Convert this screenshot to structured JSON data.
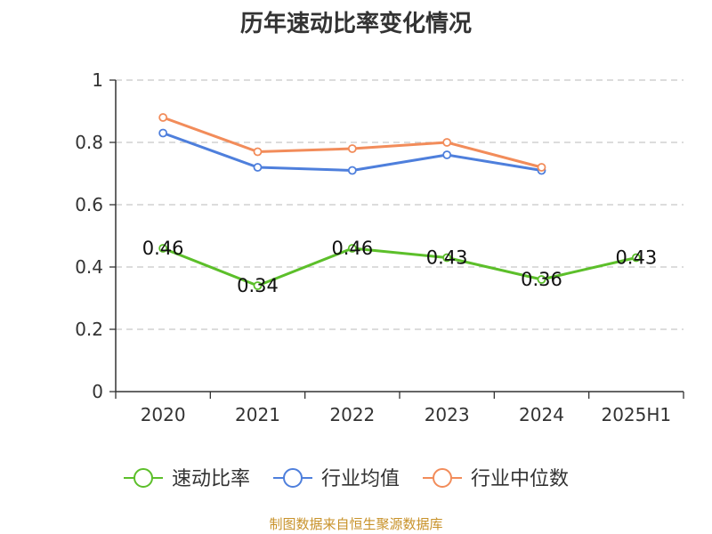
{
  "source": "制图数据来自恒生聚源数据库",
  "chart_data": {
    "type": "line",
    "title": "历年速动比率变化情况",
    "categories": [
      "2020",
      "2021",
      "2022",
      "2023",
      "2024",
      "2025H1"
    ],
    "y_ticks": [
      "0",
      "0.2",
      "0.4",
      "0.6",
      "0.8",
      "1"
    ],
    "ylim": [
      0,
      1
    ],
    "grid": "horizontal dashed",
    "legend_position": "bottom",
    "series": [
      {
        "name": "速动比率",
        "color": "#5cbf2a",
        "values": [
          0.46,
          0.34,
          0.46,
          0.43,
          0.36,
          0.43
        ],
        "labels": [
          "0.46",
          "0.34",
          "0.46",
          "0.43",
          "0.36",
          "0.43"
        ],
        "show_labels": true
      },
      {
        "name": "行业均值",
        "color": "#4e7fdc",
        "values": [
          0.83,
          0.72,
          0.71,
          0.76,
          0.71,
          null
        ],
        "show_labels": false
      },
      {
        "name": "行业中位数",
        "color": "#f28c5a",
        "values": [
          0.88,
          0.77,
          0.78,
          0.8,
          0.72,
          null
        ],
        "show_labels": false
      }
    ]
  }
}
